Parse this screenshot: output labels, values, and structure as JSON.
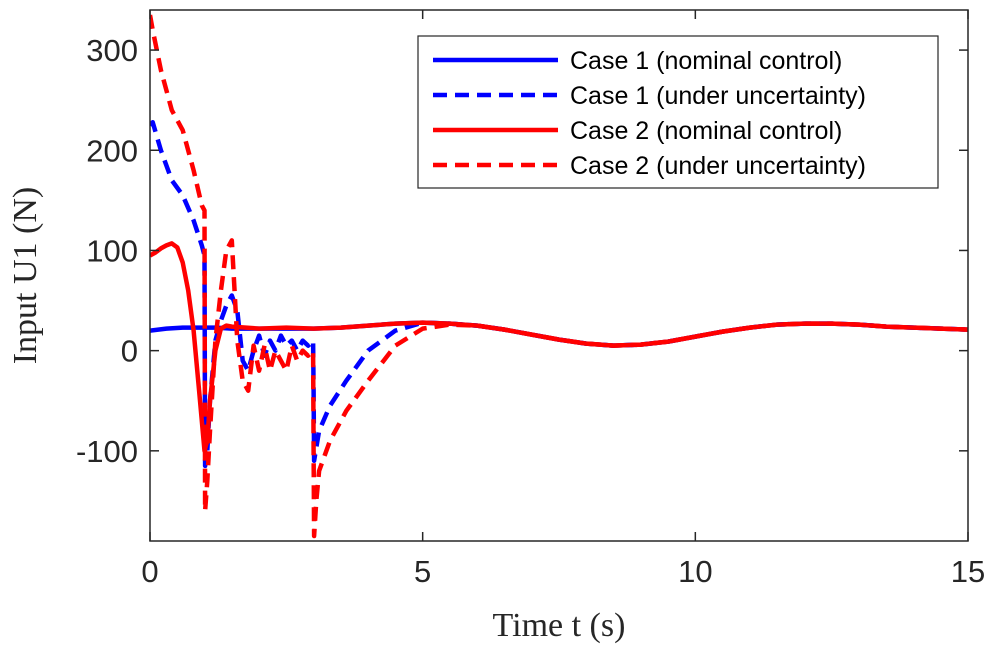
{
  "chart_data": {
    "type": "line",
    "title": "",
    "xlabel": "Time t (s)",
    "ylabel": "Input U1 (N)",
    "xlim": [
      0,
      15
    ],
    "ylim": [
      -190,
      340
    ],
    "xticks": [
      0,
      5,
      10,
      15
    ],
    "yticks": [
      -100,
      0,
      100,
      200,
      300
    ],
    "xtick_labels": [
      "0",
      "5",
      "10",
      "15"
    ],
    "ytick_labels": [
      "-100",
      "0",
      "100",
      "200",
      "300"
    ],
    "legend_position": "top-right",
    "grid": false,
    "series": [
      {
        "name": "Case 1 (nominal control)",
        "color": "#0000ff",
        "style": "solid",
        "x": [
          0,
          0.3,
          0.6,
          0.9,
          1.2,
          1.5,
          2.0,
          2.5,
          3.0,
          3.5,
          4.0,
          4.5,
          5.0,
          5.5,
          6.0,
          6.5,
          7.0,
          7.5,
          8.0,
          8.5,
          9.0,
          9.5,
          10.0,
          10.5,
          11.0,
          11.5,
          12.0,
          12.5,
          13.0,
          13.5,
          14.0,
          14.5,
          15.0
        ],
        "y": [
          20,
          22,
          23,
          23,
          23,
          22,
          22,
          22,
          22,
          23,
          25,
          27,
          28,
          27,
          25,
          21,
          16,
          11,
          7,
          5,
          6,
          9,
          14,
          19,
          23,
          26,
          27,
          27,
          26,
          24,
          23,
          22,
          21
        ]
      },
      {
        "name": "Case 1 (under uncertainty)",
        "color": "#0000ff",
        "style": "dashed",
        "x": [
          0,
          0.05,
          0.2,
          0.4,
          0.6,
          0.8,
          0.95,
          1.0,
          1.01,
          1.05,
          1.1,
          1.2,
          1.3,
          1.4,
          1.5,
          1.6,
          1.7,
          1.8,
          1.9,
          2.0,
          2.1,
          2.2,
          2.3,
          2.4,
          2.5,
          2.6,
          2.7,
          2.8,
          2.9,
          2.99,
          3.0,
          3.01,
          3.1,
          3.3,
          3.6,
          4.0,
          4.5,
          5.0,
          5.5,
          6.0,
          6.5,
          7.0,
          7.5,
          8.0,
          8.5,
          9.0,
          9.5,
          10.0,
          10.5,
          11.0,
          11.5,
          12.0,
          12.5,
          13.0,
          13.5,
          14.0,
          14.5,
          15.0
        ],
        "y": [
          225,
          228,
          200,
          170,
          155,
          130,
          105,
          95,
          -115,
          -100,
          -50,
          10,
          30,
          45,
          55,
          40,
          -10,
          -20,
          0,
          15,
          -5,
          10,
          0,
          15,
          5,
          10,
          0,
          10,
          5,
          10,
          -40,
          -110,
          -80,
          -55,
          -30,
          0,
          20,
          28,
          27,
          25,
          21,
          16,
          11,
          7,
          5,
          6,
          9,
          14,
          19,
          23,
          26,
          27,
          27,
          26,
          24,
          23,
          22,
          21
        ]
      },
      {
        "name": "Case 2 (nominal control)",
        "color": "#ff0000",
        "style": "solid",
        "x": [
          0,
          0.1,
          0.2,
          0.3,
          0.4,
          0.5,
          0.6,
          0.7,
          0.8,
          0.9,
          1.0,
          1.05,
          1.1,
          1.2,
          1.3,
          1.4,
          1.5,
          2.0,
          2.5,
          3.0,
          3.5,
          4.0,
          4.5,
          5.0,
          5.5,
          6.0,
          6.5,
          7.0,
          7.5,
          8.0,
          8.5,
          9.0,
          9.5,
          10.0,
          10.5,
          11.0,
          11.5,
          12.0,
          12.5,
          13.0,
          13.5,
          14.0,
          14.5,
          15.0
        ],
        "y": [
          95,
          98,
          102,
          105,
          107,
          103,
          88,
          60,
          20,
          -40,
          -100,
          -90,
          -50,
          0,
          22,
          25,
          24,
          22,
          23,
          22,
          23,
          25,
          27,
          28,
          27,
          25,
          21,
          16,
          11,
          7,
          5,
          6,
          9,
          14,
          19,
          23,
          26,
          27,
          27,
          26,
          24,
          23,
          22,
          21
        ]
      },
      {
        "name": "Case 2 (under uncertainty)",
        "color": "#ff0000",
        "style": "dashed",
        "x": [
          0,
          0.05,
          0.2,
          0.4,
          0.6,
          0.8,
          0.95,
          1.0,
          1.01,
          1.05,
          1.1,
          1.2,
          1.3,
          1.4,
          1.5,
          1.6,
          1.7,
          1.8,
          1.9,
          2.0,
          2.1,
          2.2,
          2.3,
          2.4,
          2.5,
          2.6,
          2.7,
          2.8,
          2.9,
          2.99,
          3.0,
          3.01,
          3.05,
          3.1,
          3.3,
          3.6,
          4.0,
          4.5,
          5.0,
          5.5,
          6.0,
          6.5,
          7.0,
          7.5,
          8.0,
          8.5,
          9.0,
          9.5,
          10.0,
          10.5,
          11.0,
          11.5,
          12.0,
          12.5,
          13.0,
          13.5,
          14.0,
          14.5,
          15.0
        ],
        "y": [
          335,
          320,
          280,
          240,
          220,
          180,
          145,
          140,
          -160,
          -130,
          -80,
          10,
          60,
          100,
          110,
          10,
          -30,
          -40,
          5,
          -20,
          5,
          -20,
          0,
          -10,
          -20,
          5,
          -10,
          0,
          -5,
          0,
          -100,
          -185,
          -150,
          -120,
          -90,
          -60,
          -30,
          5,
          22,
          26,
          25,
          21,
          16,
          11,
          7,
          5,
          6,
          9,
          14,
          19,
          23,
          26,
          27,
          27,
          26,
          24,
          23,
          22,
          21
        ]
      }
    ]
  }
}
